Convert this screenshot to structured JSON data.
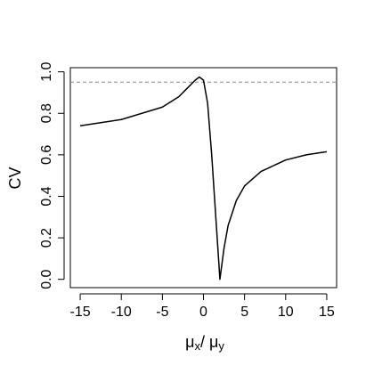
{
  "chart_data": {
    "type": "line",
    "ylabel": "CV",
    "xlabel_parts": [
      "μ",
      "x",
      "/ μ",
      "y"
    ],
    "x": [
      -15,
      -10,
      -5,
      -3,
      -2,
      -1,
      -0.5,
      0,
      0.5,
      1,
      1.5,
      2,
      2.5,
      3,
      4,
      5,
      7,
      10,
      12.5,
      15
    ],
    "series": [
      {
        "color": "#000000",
        "values": [
          0.74,
          0.77,
          0.83,
          0.88,
          0.92,
          0.96,
          0.975,
          0.96,
          0.85,
          0.6,
          0.3,
          0.0,
          0.15,
          0.26,
          0.38,
          0.45,
          0.52,
          0.575,
          0.6,
          0.615
        ]
      }
    ],
    "hline": 0.95,
    "hline_color": "#888888",
    "xlim": [
      -16.2,
      16.2
    ],
    "ylim": [
      -0.04,
      1.02
    ],
    "xticks": [
      -15,
      -10,
      -5,
      0,
      5,
      10,
      15
    ],
    "yticks": [
      {
        "value": 0,
        "label": "0.0"
      },
      {
        "value": 0.2,
        "label": "0.2"
      },
      {
        "value": 0.4,
        "label": "0.4"
      },
      {
        "value": 0.6,
        "label": "0.6"
      },
      {
        "value": 0.8,
        "label": "0.8"
      },
      {
        "value": 1,
        "label": "1.0"
      }
    ]
  }
}
